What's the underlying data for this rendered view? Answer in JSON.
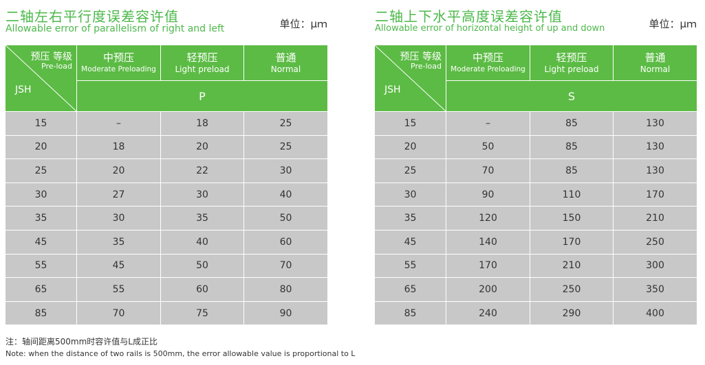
{
  "colors": {
    "accent": "#5cbb45",
    "title": "#4cb84a",
    "row_bg": "#c8c8c8"
  },
  "tables": [
    {
      "title_cn": "二轴左右平行度误差容许值",
      "title_en": "Allowable error of parallelism of right and left",
      "unit": "单位：μｍ",
      "corner_cn": "预压 等级",
      "corner_en": "Pre-load",
      "model_label": "JSH",
      "columns": [
        {
          "cn": "中预压",
          "en": "Moderate Preloading"
        },
        {
          "cn": "轻预压",
          "en": "Light preload"
        },
        {
          "cn": "普通",
          "en": "Normal"
        }
      ],
      "symbol": "P",
      "rows": [
        [
          "15",
          "–",
          "18",
          "25"
        ],
        [
          "20",
          "18",
          "20",
          "25"
        ],
        [
          "25",
          "20",
          "22",
          "30"
        ],
        [
          "30",
          "27",
          "30",
          "40"
        ],
        [
          "35",
          "30",
          "35",
          "50"
        ],
        [
          "45",
          "35",
          "40",
          "60"
        ],
        [
          "55",
          "45",
          "50",
          "70"
        ],
        [
          "65",
          "55",
          "60",
          "80"
        ],
        [
          "85",
          "70",
          "75",
          "90"
        ]
      ]
    },
    {
      "title_cn": "二轴上下水平高度误差容许值",
      "title_en": "Allowable error of horizontal height of up and down",
      "unit": "单位：μｍ",
      "corner_cn": "预压 等级",
      "corner_en": "Pre-load",
      "model_label": "JSH",
      "columns": [
        {
          "cn": "中预压",
          "en": "Moderate Preloading"
        },
        {
          "cn": "轻预压",
          "en": "Light preload"
        },
        {
          "cn": "普通",
          "en": "Normal"
        }
      ],
      "symbol": "S",
      "rows": [
        [
          "15",
          "–",
          "85",
          "130"
        ],
        [
          "20",
          "50",
          "85",
          "130"
        ],
        [
          "25",
          "70",
          "85",
          "130"
        ],
        [
          "30",
          "90",
          "110",
          "170"
        ],
        [
          "35",
          "120",
          "150",
          "210"
        ],
        [
          "45",
          "140",
          "170",
          "250"
        ],
        [
          "55",
          "170",
          "210",
          "300"
        ],
        [
          "65",
          "200",
          "250",
          "350"
        ],
        [
          "85",
          "240",
          "290",
          "400"
        ]
      ]
    }
  ],
  "note_cn": "注：轴间距离500mm时容许值与L成正比",
  "note_en": "Note: when the distance of two rails is 500mm, the error allowable value is proportional to L"
}
